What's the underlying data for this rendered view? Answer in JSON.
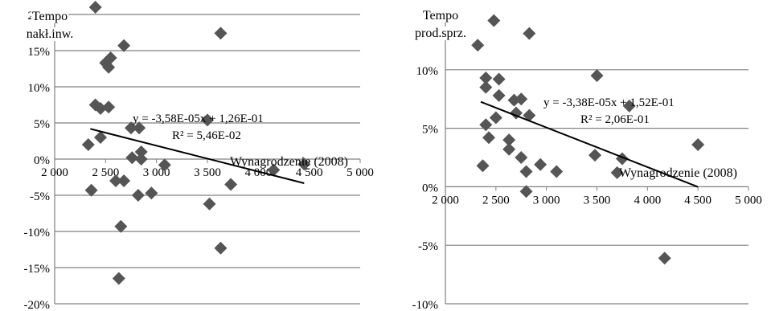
{
  "chart_data": [
    {
      "type": "scatter",
      "ylabel": "Tempo nakł.inw.",
      "ylabel_lines": [
        "Tempo",
        "nakł.inw."
      ],
      "xlabel": "Wynagrodzenie (2008)",
      "xlim": [
        2000,
        5000
      ],
      "ylim": [
        -0.2,
        0.2
      ],
      "xticks": [
        2000,
        2500,
        3000,
        3500,
        4000,
        4500,
        5000
      ],
      "xtick_labels": [
        "2 000",
        "2 500",
        "3 000",
        "3 500",
        "4 000",
        "4 500",
        "5 000"
      ],
      "yticks": [
        -0.2,
        -0.15,
        -0.1,
        -0.05,
        0.0,
        0.05,
        0.1,
        0.15,
        0.2
      ],
      "ytick_labels": [
        "-20%",
        "-15%",
        "-10%",
        "-5%",
        "0%",
        "5%",
        "10%",
        "15%",
        "20%"
      ],
      "grid": "horizontal",
      "point_color": "#555555",
      "line_color": "#000000",
      "trendline": {
        "slope": -3.58e-05,
        "intercept": 0.126,
        "x_range": [
          2350,
          4450
        ]
      },
      "equation": "y = -3,58E-05x + 1,26E-01",
      "r_squared": "R² = 5,46E-02",
      "points": [
        {
          "x": 2400,
          "y": 0.21
        },
        {
          "x": 2400,
          "y": 0.075
        },
        {
          "x": 2450,
          "y": 0.07
        },
        {
          "x": 2530,
          "y": 0.072
        },
        {
          "x": 2500,
          "y": 0.133
        },
        {
          "x": 2550,
          "y": 0.14
        },
        {
          "x": 2530,
          "y": 0.127
        },
        {
          "x": 2680,
          "y": 0.157
        },
        {
          "x": 3630,
          "y": 0.174
        },
        {
          "x": 2330,
          "y": 0.02
        },
        {
          "x": 2450,
          "y": 0.03
        },
        {
          "x": 2750,
          "y": 0.043
        },
        {
          "x": 2830,
          "y": 0.043
        },
        {
          "x": 3500,
          "y": 0.054
        },
        {
          "x": 2760,
          "y": 0.002
        },
        {
          "x": 2850,
          "y": 0.0
        },
        {
          "x": 2850,
          "y": 0.01
        },
        {
          "x": 3080,
          "y": -0.008
        },
        {
          "x": 4150,
          "y": -0.015
        },
        {
          "x": 4450,
          "y": -0.007
        },
        {
          "x": 2360,
          "y": -0.043
        },
        {
          "x": 2600,
          "y": -0.03
        },
        {
          "x": 2680,
          "y": -0.03
        },
        {
          "x": 2820,
          "y": -0.05
        },
        {
          "x": 2950,
          "y": -0.047
        },
        {
          "x": 3730,
          "y": -0.035
        },
        {
          "x": 3520,
          "y": -0.062
        },
        {
          "x": 2650,
          "y": -0.093
        },
        {
          "x": 3630,
          "y": -0.123
        },
        {
          "x": 2630,
          "y": -0.165
        }
      ]
    },
    {
      "type": "scatter",
      "ylabel": "Tempo prod.sprz.",
      "ylabel_lines": [
        "Tempo",
        "prod.sprz."
      ],
      "xlabel": "Wynagrodzenie (2008)",
      "xlim": [
        2000,
        5000
      ],
      "ylim": [
        -0.1,
        0.15
      ],
      "xticks": [
        2000,
        2500,
        3000,
        3500,
        4000,
        4500,
        5000
      ],
      "xtick_labels": [
        "2 000",
        "2 500",
        "3 000",
        "3 500",
        "4 000",
        "4 500",
        "5 000"
      ],
      "yticks": [
        -0.1,
        -0.05,
        0.0,
        0.05,
        0.1
      ],
      "ytick_labels": [
        "-10%",
        "-5%",
        "0%",
        "5%",
        "10%"
      ],
      "grid": "horizontal",
      "point_color": "#555555",
      "line_color": "#000000",
      "trendline": {
        "slope": -3.38e-05,
        "intercept": 0.152,
        "x_range": [
          2350,
          4500
        ]
      },
      "equation": "y = -3,38E-05x + 1,52E-01",
      "r_squared": "R² = 2,06E-01",
      "points": [
        {
          "x": 2320,
          "y": 0.121
        },
        {
          "x": 2480,
          "y": 0.142
        },
        {
          "x": 2830,
          "y": 0.131
        },
        {
          "x": 2400,
          "y": 0.093
        },
        {
          "x": 2530,
          "y": 0.092
        },
        {
          "x": 3500,
          "y": 0.095
        },
        {
          "x": 2400,
          "y": 0.085
        },
        {
          "x": 2530,
          "y": 0.078
        },
        {
          "x": 2680,
          "y": 0.074
        },
        {
          "x": 2750,
          "y": 0.075
        },
        {
          "x": 3820,
          "y": 0.069
        },
        {
          "x": 2700,
          "y": 0.063
        },
        {
          "x": 2830,
          "y": 0.061
        },
        {
          "x": 2500,
          "y": 0.059
        },
        {
          "x": 2400,
          "y": 0.053
        },
        {
          "x": 2430,
          "y": 0.042
        },
        {
          "x": 2630,
          "y": 0.04
        },
        {
          "x": 2630,
          "y": 0.032
        },
        {
          "x": 4500,
          "y": 0.036
        },
        {
          "x": 3480,
          "y": 0.027
        },
        {
          "x": 2750,
          "y": 0.025
        },
        {
          "x": 3750,
          "y": 0.024
        },
        {
          "x": 2940,
          "y": 0.019
        },
        {
          "x": 2370,
          "y": 0.018
        },
        {
          "x": 2800,
          "y": 0.013
        },
        {
          "x": 3100,
          "y": 0.013
        },
        {
          "x": 3700,
          "y": 0.012
        },
        {
          "x": 2800,
          "y": -0.004
        },
        {
          "x": 4170,
          "y": -0.061
        }
      ]
    }
  ]
}
